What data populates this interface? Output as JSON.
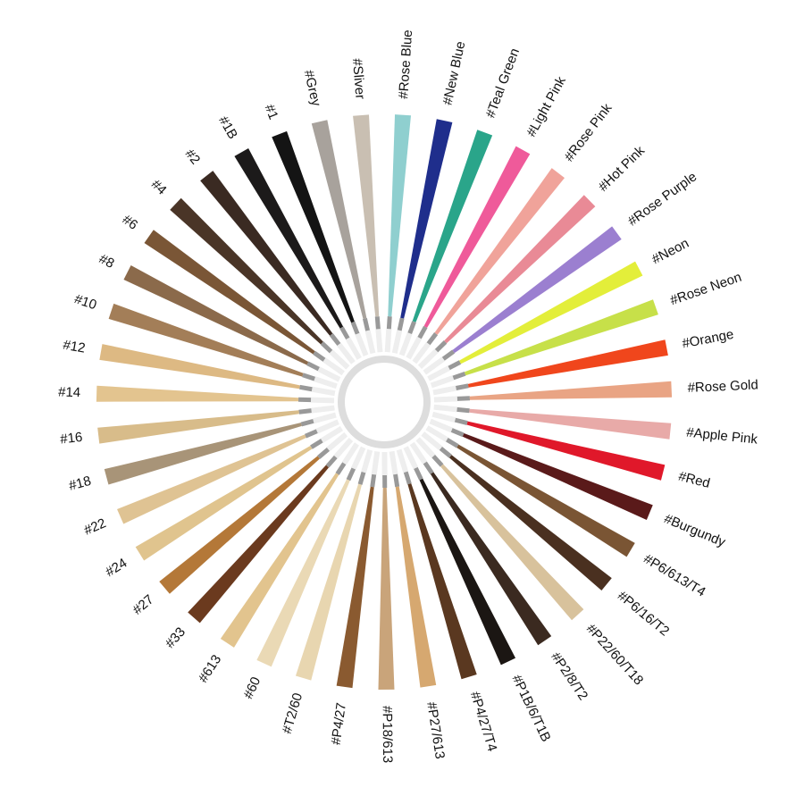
{
  "swatches": [
    {
      "label": "#Grey",
      "color": "#a8a29c"
    },
    {
      "label": "#Sliver",
      "color": "#c9bfb2"
    },
    {
      "label": "#Rose Blue",
      "color": "#8fcfcf"
    },
    {
      "label": "#New Blue",
      "color": "#1f2e8c"
    },
    {
      "label": "#Teal Green",
      "color": "#2aa58a"
    },
    {
      "label": "#Light Pink",
      "color": "#ef5a9a"
    },
    {
      "label": "#Rose Pink",
      "color": "#f0a39a"
    },
    {
      "label": "#Hot Pink",
      "color": "#e98a96"
    },
    {
      "label": "#Rose Purple",
      "color": "#9b7fd0"
    },
    {
      "label": "#Neon",
      "color": "#e3ee3a"
    },
    {
      "label": "#Rose Neon",
      "color": "#c7e049"
    },
    {
      "label": "#Orange",
      "color": "#f0461c"
    },
    {
      "label": "#Rose Gold",
      "color": "#e9a484"
    },
    {
      "label": "#Apple Pink",
      "color": "#e8aaa8"
    },
    {
      "label": "#Red",
      "color": "#e0182a"
    },
    {
      "label": "#Burgundy",
      "color": "#5a1a1a"
    },
    {
      "label": "#P6/613/T4",
      "color": "#7a5534"
    },
    {
      "label": "#P6/16/T2",
      "color": "#4a3020"
    },
    {
      "label": "#P22/60/T18",
      "color": "#d8c29c"
    },
    {
      "label": "#P2/8/T2",
      "color": "#3b2a20"
    },
    {
      "label": "#P1B/6/T1B",
      "color": "#1b1613"
    },
    {
      "label": "#P4/27/T4",
      "color": "#5a3820"
    },
    {
      "label": "#P27/613",
      "color": "#d6a870"
    },
    {
      "label": "#P18/613",
      "color": "#c9a47a"
    },
    {
      "label": "#P4/27",
      "color": "#8a5a30"
    },
    {
      "label": "#T2/60",
      "color": "#e8d6b0"
    },
    {
      "label": "#60",
      "color": "#ead9b5"
    },
    {
      "label": "#613",
      "color": "#e2c48e"
    },
    {
      "label": "#33",
      "color": "#6b3a1e"
    },
    {
      "label": "#27",
      "color": "#b47838"
    },
    {
      "label": "#24",
      "color": "#e0c48e"
    },
    {
      "label": "#22",
      "color": "#dfc393"
    },
    {
      "label": "#18",
      "color": "#a89478"
    },
    {
      "label": "#16",
      "color": "#d8bc8a"
    },
    {
      "label": "#14",
      "color": "#e3c48f"
    },
    {
      "label": "#12",
      "color": "#ddb983"
    },
    {
      "label": "#10",
      "color": "#a37e58"
    },
    {
      "label": "#8",
      "color": "#8b6a4b"
    },
    {
      "label": "#6",
      "color": "#7a5636"
    },
    {
      "label": "#4",
      "color": "#4a3527"
    },
    {
      "label": "#2",
      "color": "#3a2a22"
    },
    {
      "label": "#1B",
      "color": "#1c1a1a"
    },
    {
      "label": "#1",
      "color": "#141414"
    }
  ]
}
